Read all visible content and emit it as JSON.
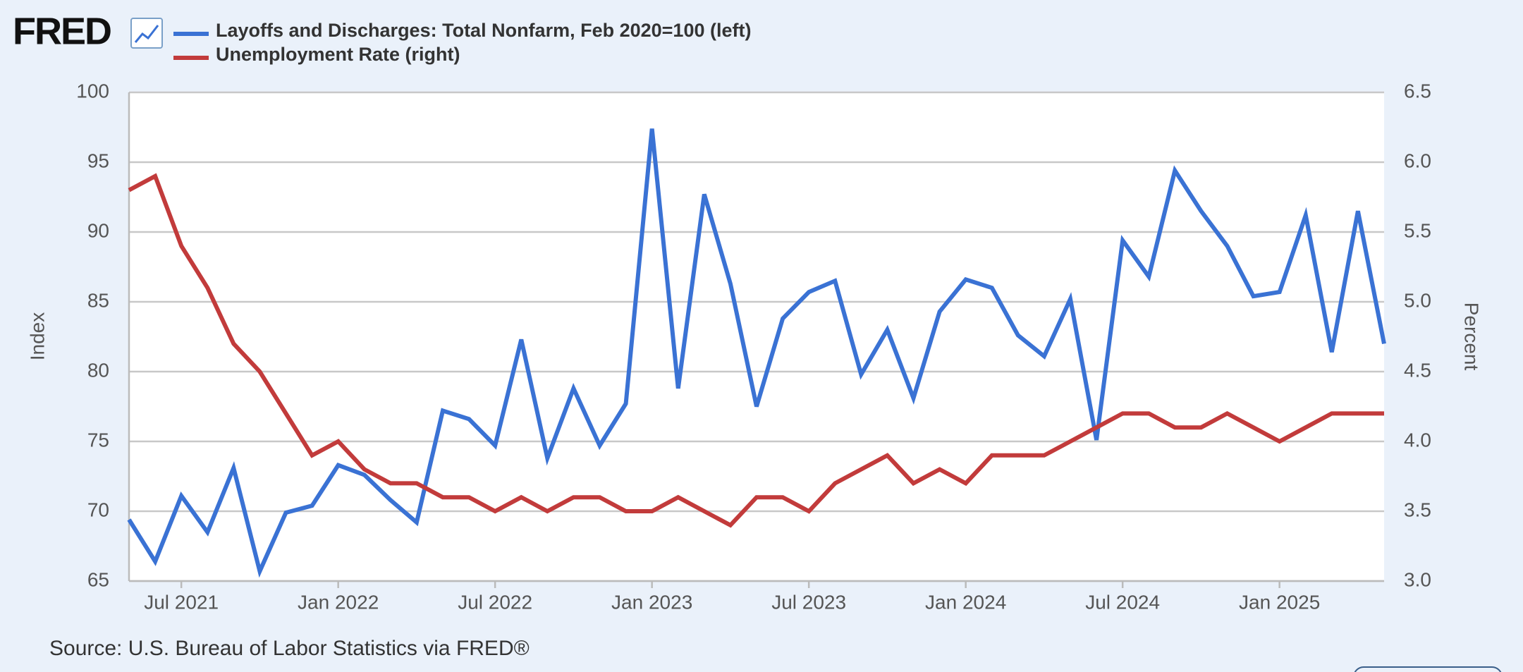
{
  "logo": "FRED",
  "source": "Source: U.S. Bureau of Labor Statistics via FRED®",
  "chart_data": {
    "type": "line",
    "ylabel": "Index",
    "y2label": "Percent",
    "x": [
      "2021-05",
      "2021-06",
      "2021-07",
      "2021-08",
      "2021-09",
      "2021-10",
      "2021-11",
      "2021-12",
      "2022-01",
      "2022-02",
      "2022-03",
      "2022-04",
      "2022-05",
      "2022-06",
      "2022-07",
      "2022-08",
      "2022-09",
      "2022-10",
      "2022-11",
      "2022-12",
      "2023-01",
      "2023-02",
      "2023-03",
      "2023-04",
      "2023-05",
      "2023-06",
      "2023-07",
      "2023-08",
      "2023-09",
      "2023-10",
      "2023-11",
      "2023-12",
      "2024-01",
      "2024-02",
      "2024-03",
      "2024-04",
      "2024-05",
      "2024-06",
      "2024-07",
      "2024-08",
      "2024-09",
      "2024-10",
      "2024-11",
      "2024-12",
      "2025-01",
      "2025-02",
      "2025-03",
      "2025-04",
      "2025-05"
    ],
    "xlim": [
      "2021-05",
      "2025-05"
    ],
    "xticks": [
      {
        "value": "2021-07",
        "label": "Jul 2021"
      },
      {
        "value": "2022-01",
        "label": "Jan 2022"
      },
      {
        "value": "2022-07",
        "label": "Jul 2022"
      },
      {
        "value": "2023-01",
        "label": "Jan 2023"
      },
      {
        "value": "2023-07",
        "label": "Jul 2023"
      },
      {
        "value": "2024-01",
        "label": "Jan 2024"
      },
      {
        "value": "2024-07",
        "label": "Jul 2024"
      },
      {
        "value": "2025-01",
        "label": "Jan 2025"
      }
    ],
    "ylim": [
      65,
      100
    ],
    "yticks": [
      65,
      70,
      75,
      80,
      85,
      90,
      95,
      100
    ],
    "y2lim": [
      3,
      6.5
    ],
    "y2ticks": [
      {
        "value": 3,
        "label": "3.0"
      },
      3.5,
      {
        "value": 4,
        "label": "4.0"
      },
      4.5,
      {
        "value": 5,
        "label": "5.0"
      },
      5.5,
      {
        "value": 6,
        "label": "6.0"
      },
      6.5
    ],
    "grid": true,
    "series": [
      {
        "name": "Layoffs and Discharges: Total Nonfarm, Feb 2020=100 (left)",
        "color": "#3a72d4",
        "axis": "y",
        "values": [
          69.4,
          66.4,
          71.1,
          68.5,
          73.1,
          65.7,
          69.9,
          70.4,
          73.3,
          72.6,
          70.8,
          69.2,
          77.2,
          76.6,
          74.7,
          82.3,
          73.8,
          78.8,
          74.7,
          77.7,
          97.4,
          78.8,
          92.7,
          86.3,
          77.5,
          83.8,
          85.7,
          86.5,
          79.8,
          83.0,
          78.1,
          84.3,
          86.6,
          86.0,
          82.6,
          81.1,
          85.2,
          75.1,
          89.4,
          86.8,
          94.4,
          91.5,
          89.0,
          85.4,
          85.7,
          91.2,
          81.4,
          91.5,
          82.0
        ]
      },
      {
        "name": "Unemployment Rate (right)",
        "color": "#c23b3b",
        "axis": "y2",
        "values": [
          5.8,
          5.9,
          5.4,
          5.1,
          4.7,
          4.5,
          4.2,
          3.9,
          4.0,
          3.8,
          3.7,
          3.7,
          3.6,
          3.6,
          3.5,
          3.6,
          3.5,
          3.6,
          3.6,
          3.5,
          3.5,
          3.6,
          3.5,
          3.4,
          3.6,
          3.6,
          3.5,
          3.7,
          3.8,
          3.9,
          3.7,
          3.8,
          3.7,
          3.9,
          3.9,
          3.9,
          4.0,
          4.1,
          4.2,
          4.2,
          4.1,
          4.1,
          4.2,
          4.1,
          4.0,
          4.1,
          4.2,
          4.2,
          4.2
        ]
      }
    ]
  }
}
